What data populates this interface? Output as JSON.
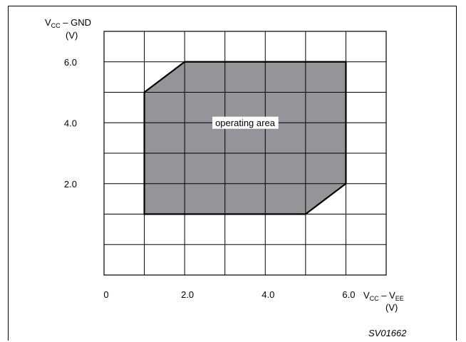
{
  "chart_data": {
    "type": "area",
    "xlabel": {
      "main": "V",
      "sub1": "CC",
      "sep": " – V",
      "sub2": "EE",
      "unit": "(V)"
    },
    "ylabel": {
      "main": "V",
      "sub1": "CC",
      "rest": " – GND",
      "unit": "(V)"
    },
    "xlim": [
      0,
      7
    ],
    "ylim": [
      -1,
      7
    ],
    "x_ticks": [
      {
        "value": 0,
        "label": "0"
      },
      {
        "value": 2,
        "label": "2.0"
      },
      {
        "value": 4,
        "label": "4.0"
      },
      {
        "value": 6,
        "label": "6.0"
      }
    ],
    "y_ticks": [
      {
        "value": 6,
        "label": "6.0"
      },
      {
        "value": 4,
        "label": "4.0"
      },
      {
        "value": 2,
        "label": "2.0"
      }
    ],
    "grid": true,
    "grid_step": 1,
    "region": {
      "name": "operating area",
      "points": [
        [
          1,
          1
        ],
        [
          1,
          5
        ],
        [
          2,
          6
        ],
        [
          6,
          6
        ],
        [
          6,
          2
        ],
        [
          5,
          1
        ]
      ]
    },
    "annotation": {
      "text": "operating area",
      "x": 3.5,
      "y": 4
    },
    "reference": "SV01662",
    "colors": {
      "fill": "#939598",
      "grid": "#000000",
      "background": "#ffffff"
    }
  }
}
